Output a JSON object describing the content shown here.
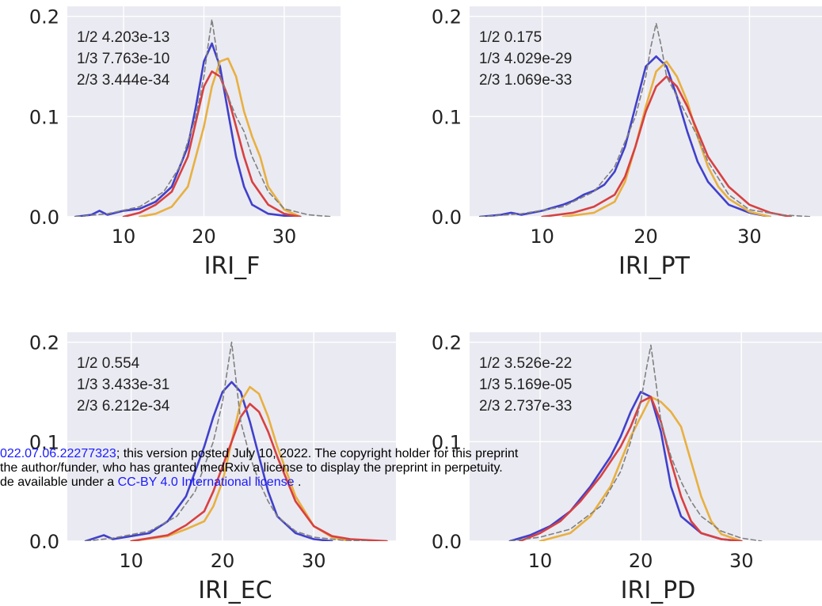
{
  "chart_data": [
    {
      "type": "line",
      "xlabel": "IRI_F",
      "xticks": [
        10,
        20,
        30
      ],
      "yticks": [
        "0.0",
        "0.1",
        "0.2"
      ],
      "xlim": [
        3,
        37
      ],
      "ylim": [
        0,
        0.21
      ],
      "grid": true,
      "annotations": [
        "1/2 4.203e-13",
        "1/3 7.763e-10",
        "2/3 3.444e-34"
      ],
      "series": [
        {
          "color": "#4040cc",
          "dashed": false,
          "x": [
            4,
            6,
            7,
            8,
            10,
            12,
            14,
            16,
            18,
            19,
            20,
            21,
            22,
            23,
            24,
            25,
            26,
            28,
            30,
            32
          ],
          "y": [
            0.0,
            0.002,
            0.006,
            0.002,
            0.006,
            0.008,
            0.015,
            0.03,
            0.07,
            0.11,
            0.155,
            0.173,
            0.15,
            0.105,
            0.06,
            0.03,
            0.012,
            0.003,
            0.001,
            0.0
          ]
        },
        {
          "color": "#e8b040",
          "dashed": false,
          "x": [
            12,
            14,
            16,
            18,
            20,
            21,
            22,
            23,
            24,
            25,
            26,
            27,
            28,
            30,
            32
          ],
          "y": [
            0.0,
            0.003,
            0.01,
            0.03,
            0.09,
            0.13,
            0.155,
            0.158,
            0.14,
            0.105,
            0.08,
            0.06,
            0.03,
            0.007,
            0.0
          ]
        },
        {
          "color": "#d84040",
          "dashed": false,
          "x": [
            10,
            12,
            14,
            16,
            18,
            19,
            20,
            21,
            22,
            23,
            24,
            25,
            26,
            28,
            30,
            32
          ],
          "y": [
            0.0,
            0.004,
            0.012,
            0.025,
            0.06,
            0.095,
            0.13,
            0.145,
            0.14,
            0.12,
            0.09,
            0.06,
            0.035,
            0.012,
            0.003,
            0.0
          ]
        },
        {
          "color": "#808080",
          "dashed": true,
          "x": [
            4,
            8,
            12,
            15,
            17,
            18,
            19,
            20,
            20.5,
            21,
            21.5,
            22,
            23,
            24,
            25,
            26,
            28,
            30,
            33,
            36
          ],
          "y": [
            0.0,
            0.003,
            0.01,
            0.025,
            0.05,
            0.075,
            0.1,
            0.14,
            0.17,
            0.197,
            0.17,
            0.14,
            0.12,
            0.1,
            0.085,
            0.06,
            0.025,
            0.008,
            0.002,
            0.0
          ]
        }
      ]
    },
    {
      "type": "line",
      "xlabel": "IRI_PT",
      "xticks": [
        10,
        20,
        30
      ],
      "yticks": [
        "0.0",
        "0.1",
        "0.2"
      ],
      "xlim": [
        3,
        37
      ],
      "ylim": [
        0,
        0.21
      ],
      "grid": true,
      "annotations": [
        "1/2 0.175",
        "1/3 4.029e-29",
        "2/3 1.069e-33"
      ],
      "series": [
        {
          "color": "#4040cc",
          "dashed": false,
          "x": [
            4,
            6,
            7,
            8,
            10,
            12,
            13,
            14,
            15,
            16,
            17,
            18,
            19,
            20,
            21,
            22,
            23,
            24,
            25,
            26,
            28,
            30,
            32
          ],
          "y": [
            0.0,
            0.002,
            0.004,
            0.002,
            0.006,
            0.012,
            0.016,
            0.022,
            0.026,
            0.032,
            0.045,
            0.07,
            0.11,
            0.15,
            0.16,
            0.15,
            0.12,
            0.085,
            0.055,
            0.035,
            0.012,
            0.004,
            0.0
          ]
        },
        {
          "color": "#e8b040",
          "dashed": false,
          "x": [
            12,
            15,
            17,
            18,
            19,
            20,
            21,
            22,
            23,
            24,
            25,
            26,
            27,
            28,
            30,
            32
          ],
          "y": [
            0.0,
            0.004,
            0.015,
            0.035,
            0.07,
            0.11,
            0.145,
            0.155,
            0.14,
            0.115,
            0.08,
            0.05,
            0.03,
            0.018,
            0.005,
            0.0
          ]
        },
        {
          "color": "#d84040",
          "dashed": false,
          "x": [
            10,
            13,
            15,
            17,
            18,
            19,
            20,
            21,
            22,
            23,
            24,
            25,
            26,
            28,
            30,
            32,
            34
          ],
          "y": [
            0.0,
            0.004,
            0.01,
            0.022,
            0.04,
            0.07,
            0.105,
            0.13,
            0.14,
            0.13,
            0.11,
            0.085,
            0.06,
            0.03,
            0.012,
            0.004,
            0.0
          ]
        },
        {
          "color": "#808080",
          "dashed": true,
          "x": [
            4,
            8,
            12,
            15,
            17,
            18,
            19,
            20,
            20.5,
            21,
            21.5,
            22,
            23,
            24,
            25,
            26,
            28,
            30,
            33,
            36
          ],
          "y": [
            0.0,
            0.003,
            0.01,
            0.025,
            0.05,
            0.075,
            0.1,
            0.14,
            0.17,
            0.193,
            0.17,
            0.14,
            0.12,
            0.1,
            0.08,
            0.055,
            0.022,
            0.007,
            0.002,
            0.0
          ]
        }
      ]
    },
    {
      "type": "line",
      "xlabel": "IRI_EC",
      "xticks": [
        10,
        20,
        30
      ],
      "yticks": [
        "0.0",
        "0.1",
        "0.2"
      ],
      "xlim": [
        3,
        39
      ],
      "ylim": [
        0,
        0.21
      ],
      "grid": true,
      "annotations": [
        "1/2 0.554",
        "1/3 3.433e-31",
        "2/3 6.212e-34"
      ],
      "series": [
        {
          "color": "#4040cc",
          "dashed": false,
          "x": [
            5,
            6,
            7,
            8,
            10,
            12,
            14,
            16,
            17,
            18,
            19,
            20,
            21,
            22,
            23,
            24,
            25,
            26,
            28,
            30,
            32
          ],
          "y": [
            0.0,
            0.003,
            0.006,
            0.002,
            0.005,
            0.008,
            0.02,
            0.045,
            0.07,
            0.095,
            0.125,
            0.15,
            0.16,
            0.15,
            0.12,
            0.085,
            0.05,
            0.025,
            0.008,
            0.002,
            0.0
          ]
        },
        {
          "color": "#e8b040",
          "dashed": false,
          "x": [
            10,
            14,
            16,
            18,
            19,
            20,
            21,
            22,
            23,
            24,
            25,
            26,
            27,
            28,
            30,
            32,
            34
          ],
          "y": [
            0.0,
            0.005,
            0.012,
            0.02,
            0.035,
            0.06,
            0.1,
            0.14,
            0.155,
            0.148,
            0.125,
            0.095,
            0.07,
            0.045,
            0.015,
            0.004,
            0.0
          ]
        },
        {
          "color": "#d84040",
          "dashed": false,
          "x": [
            10,
            14,
            16,
            18,
            19,
            20,
            21,
            22,
            23,
            24,
            25,
            26,
            28,
            30,
            32,
            34,
            38
          ],
          "y": [
            0.0,
            0.006,
            0.016,
            0.03,
            0.05,
            0.075,
            0.1,
            0.125,
            0.138,
            0.13,
            0.11,
            0.085,
            0.04,
            0.015,
            0.005,
            0.002,
            0.0
          ]
        },
        {
          "color": "#808080",
          "dashed": true,
          "x": [
            5,
            8,
            12,
            15,
            17,
            18,
            19,
            20,
            20.5,
            21,
            21.5,
            22,
            23,
            24,
            25,
            26,
            28,
            30,
            33,
            36
          ],
          "y": [
            0.0,
            0.003,
            0.01,
            0.025,
            0.05,
            0.075,
            0.1,
            0.14,
            0.17,
            0.2,
            0.16,
            0.12,
            0.085,
            0.06,
            0.04,
            0.025,
            0.01,
            0.004,
            0.001,
            0.0
          ]
        }
      ]
    },
    {
      "type": "line",
      "xlabel": "IRI_PD",
      "xticks": [
        10,
        20,
        30
      ],
      "yticks": [
        "0.0",
        "0.1",
        "0.2"
      ],
      "xlim": [
        3,
        38
      ],
      "ylim": [
        0,
        0.21
      ],
      "grid": true,
      "annotations": [
        "1/2 3.526e-22",
        "1/3 5.169e-05",
        "2/3 2.737e-33"
      ],
      "series": [
        {
          "color": "#4040cc",
          "dashed": false,
          "x": [
            7,
            9,
            11,
            13,
            15,
            16,
            17,
            18,
            19,
            20,
            21,
            22,
            23,
            24,
            26,
            28,
            30
          ],
          "y": [
            0.0,
            0.006,
            0.015,
            0.03,
            0.055,
            0.07,
            0.085,
            0.105,
            0.13,
            0.15,
            0.145,
            0.11,
            0.055,
            0.025,
            0.008,
            0.002,
            0.0
          ]
        },
        {
          "color": "#e8b040",
          "dashed": false,
          "x": [
            10,
            13,
            15,
            17,
            18,
            19,
            20,
            21,
            22,
            23,
            24,
            25,
            26,
            27,
            28,
            30
          ],
          "y": [
            0.0,
            0.008,
            0.025,
            0.055,
            0.08,
            0.105,
            0.125,
            0.145,
            0.14,
            0.13,
            0.115,
            0.08,
            0.045,
            0.02,
            0.007,
            0.0
          ]
        },
        {
          "color": "#d84040",
          "dashed": false,
          "x": [
            8,
            10,
            12,
            14,
            16,
            17,
            18,
            19,
            20,
            21,
            22,
            23,
            24,
            25,
            26,
            28,
            30
          ],
          "y": [
            0.0,
            0.008,
            0.02,
            0.04,
            0.065,
            0.08,
            0.095,
            0.115,
            0.14,
            0.145,
            0.12,
            0.08,
            0.045,
            0.02,
            0.008,
            0.002,
            0.0
          ]
        },
        {
          "color": "#808080",
          "dashed": true,
          "x": [
            7,
            10,
            13,
            16,
            18,
            19,
            20,
            20.5,
            21,
            21.5,
            22,
            23,
            24,
            25,
            26,
            28,
            30,
            32
          ],
          "y": [
            0.0,
            0.004,
            0.012,
            0.035,
            0.07,
            0.1,
            0.14,
            0.17,
            0.197,
            0.16,
            0.12,
            0.085,
            0.06,
            0.04,
            0.025,
            0.01,
            0.003,
            0.0
          ]
        }
      ]
    }
  ],
  "watermark": {
    "line1_link": "022.07.06.22277323",
    "line1_text": "; this version posted July 10, 2022. The copyright holder for this preprint",
    "line2_text": " the author/funder, who has granted medRxiv a license to display the preprint in perpetuity.",
    "line3_pre": "de available under a ",
    "line3_link": "CC-BY 4.0 International license",
    "line3_post": " ."
  }
}
